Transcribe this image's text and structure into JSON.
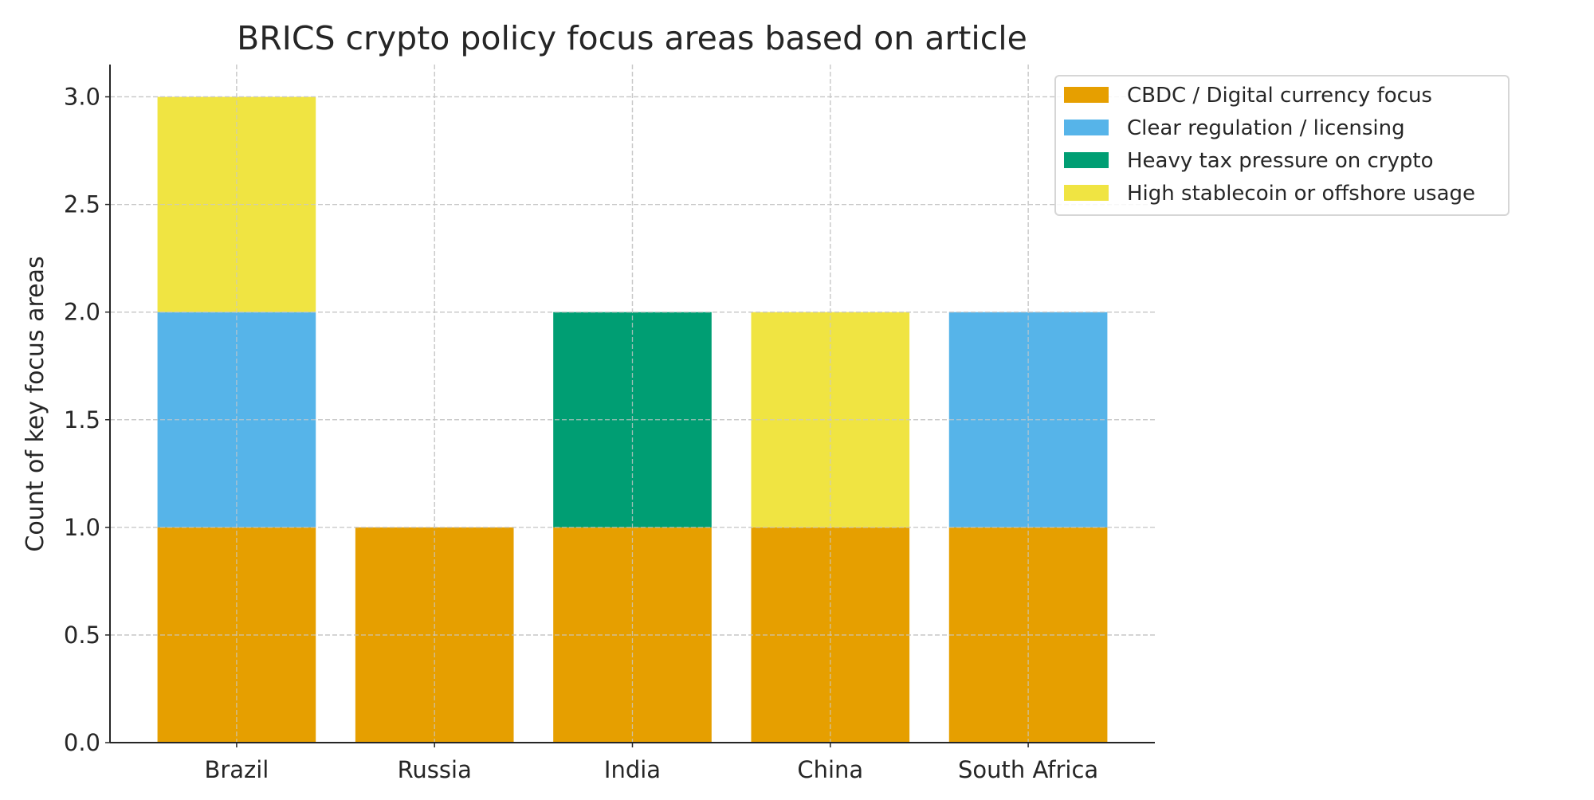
{
  "chart_data": {
    "type": "bar",
    "stacked": true,
    "title": "BRICS crypto policy focus areas based on article",
    "xlabel": "",
    "ylabel": "Count of key focus areas",
    "categories": [
      "Brazil",
      "Russia",
      "India",
      "China",
      "South Africa"
    ],
    "series": [
      {
        "name": "CBDC / Digital currency focus",
        "color": "#E69F00",
        "values": [
          1,
          1,
          1,
          1,
          1
        ]
      },
      {
        "name": "Clear regulation / licensing",
        "color": "#56B4E9",
        "values": [
          1,
          0,
          0,
          0,
          1
        ]
      },
      {
        "name": "Heavy tax pressure on crypto",
        "color": "#009E73",
        "values": [
          0,
          0,
          1,
          0,
          0
        ]
      },
      {
        "name": "High stablecoin or offshore usage",
        "color": "#F0E442",
        "values": [
          1,
          0,
          0,
          1,
          0
        ]
      }
    ],
    "ylim": [
      0,
      3.15
    ],
    "yticks": [
      "0.0",
      "0.5",
      "1.0",
      "1.5",
      "2.0",
      "2.5",
      "3.0"
    ],
    "grid": true,
    "legend_position": "top-right"
  }
}
